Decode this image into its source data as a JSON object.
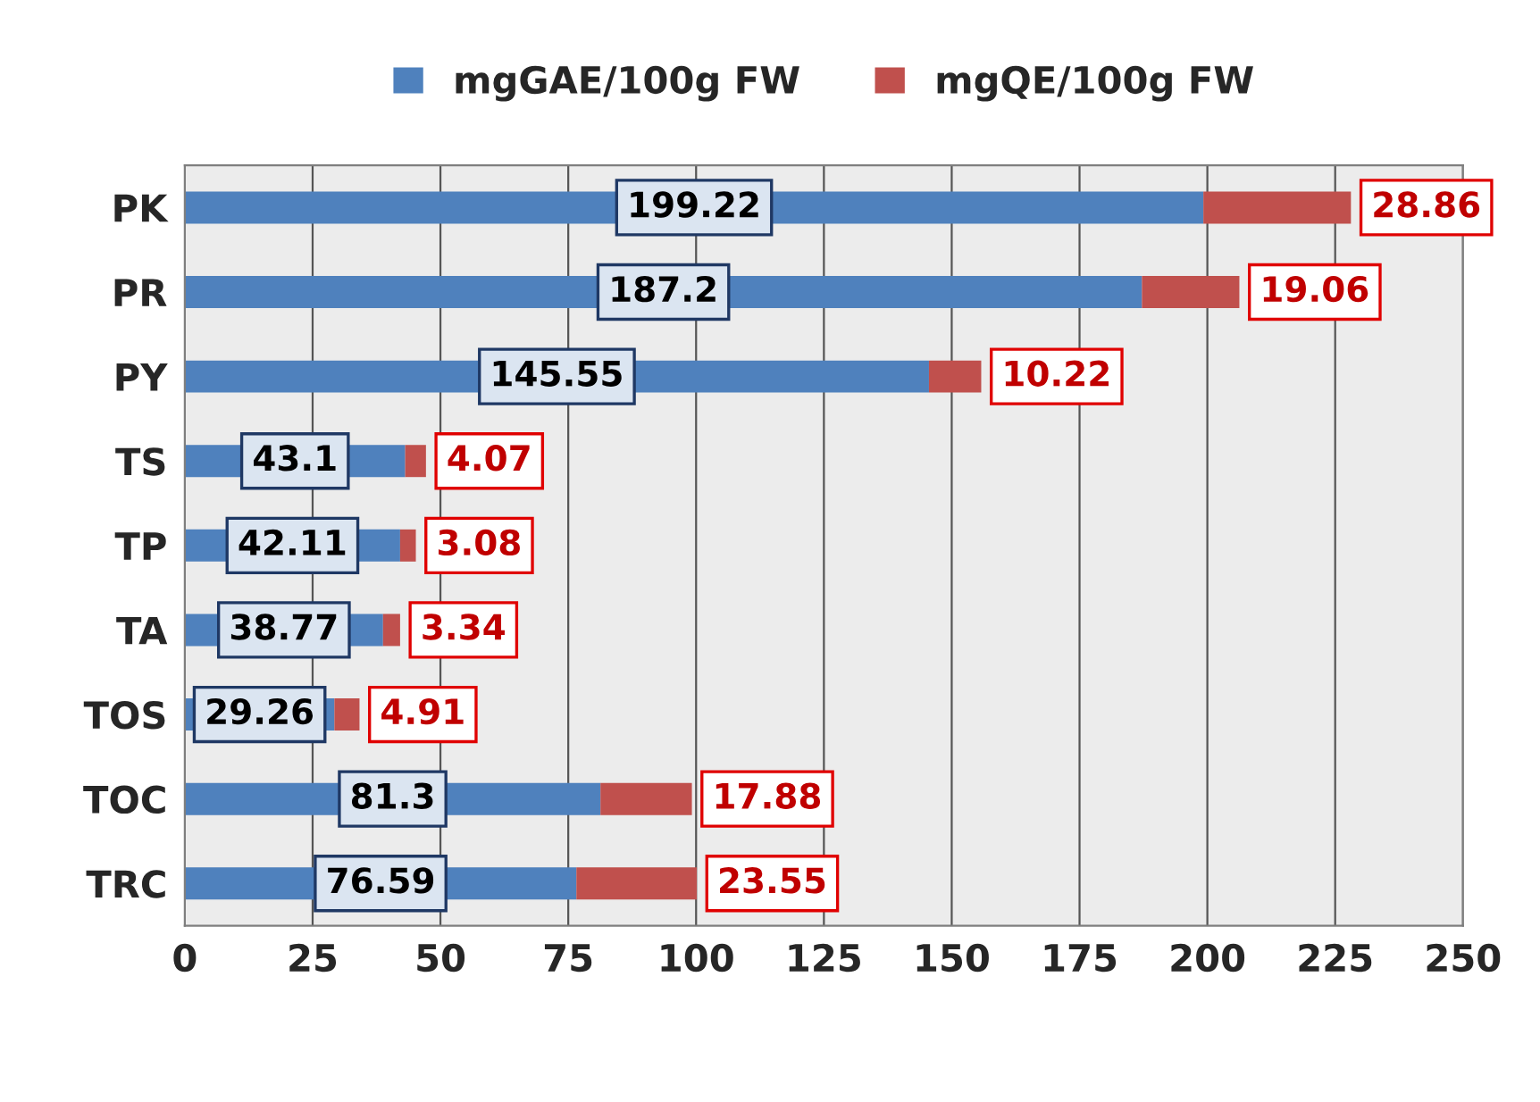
{
  "chart_data": {
    "type": "bar",
    "orientation": "horizontal",
    "stacked": true,
    "categories": [
      "PK",
      "PR",
      "PY",
      "TS",
      "TP",
      "TA",
      "TOS",
      "TOC",
      "TRC"
    ],
    "series": [
      {
        "name": "mgGAE/100g FW",
        "color": "#4f81bd",
        "values": [
          199.22,
          187.2,
          145.55,
          43.1,
          42.11,
          38.77,
          29.26,
          81.3,
          76.59
        ]
      },
      {
        "name": "mgQE/100g FW",
        "color": "#c0504d",
        "values": [
          28.86,
          19.06,
          10.22,
          4.07,
          3.08,
          3.34,
          4.91,
          17.88,
          23.55
        ]
      }
    ],
    "xlim": [
      0,
      250
    ],
    "xticks": [
      0,
      25,
      50,
      75,
      100,
      125,
      150,
      175,
      200,
      225,
      250
    ],
    "grid": "x",
    "legend": "top",
    "data_labels": true
  }
}
